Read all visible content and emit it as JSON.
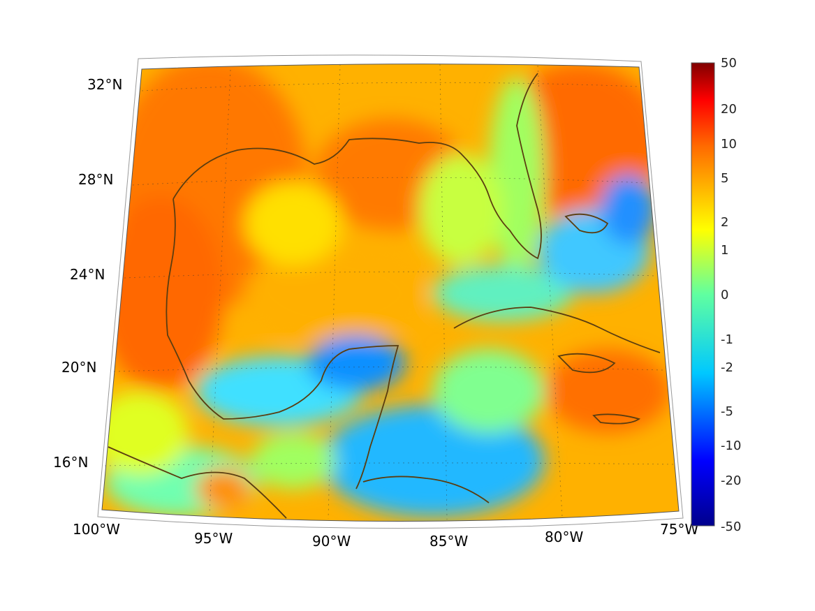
{
  "map": {
    "projection": "lambert-conformal-conic",
    "region": "Gulf of Mexico and Caribbean",
    "lat_range": [
      14,
      33
    ],
    "lon_range": [
      -100,
      -75
    ],
    "grid": true,
    "lat_labels": [
      "32°N",
      "28°N",
      "24°N",
      "20°N",
      "16°N"
    ],
    "lon_labels": [
      "100°W",
      "95°W",
      "90°W",
      "85°W",
      "80°W",
      "75°W"
    ],
    "coastline_color": "#5a3d10"
  },
  "colorbar": {
    "ticks": [
      "50",
      "20",
      "10",
      "5",
      "2",
      "1",
      "0",
      "-1",
      "-2",
      "-5",
      "-10",
      "-20",
      "-50"
    ],
    "colormap": "jet",
    "scale": "symmetric-log",
    "range": [
      -50,
      50
    ]
  },
  "field": {
    "colors": {
      "dark_red": "#800000",
      "red": "#ff2a00",
      "orange_red": "#ff6a00",
      "orange": "#ff9a00",
      "yellow": "#ffff00",
      "green": "#a0ff60",
      "cyan": "#00e6ff",
      "light_blue": "#00a0ff",
      "blue": "#0040ff",
      "dark_blue": "#00008c"
    }
  }
}
